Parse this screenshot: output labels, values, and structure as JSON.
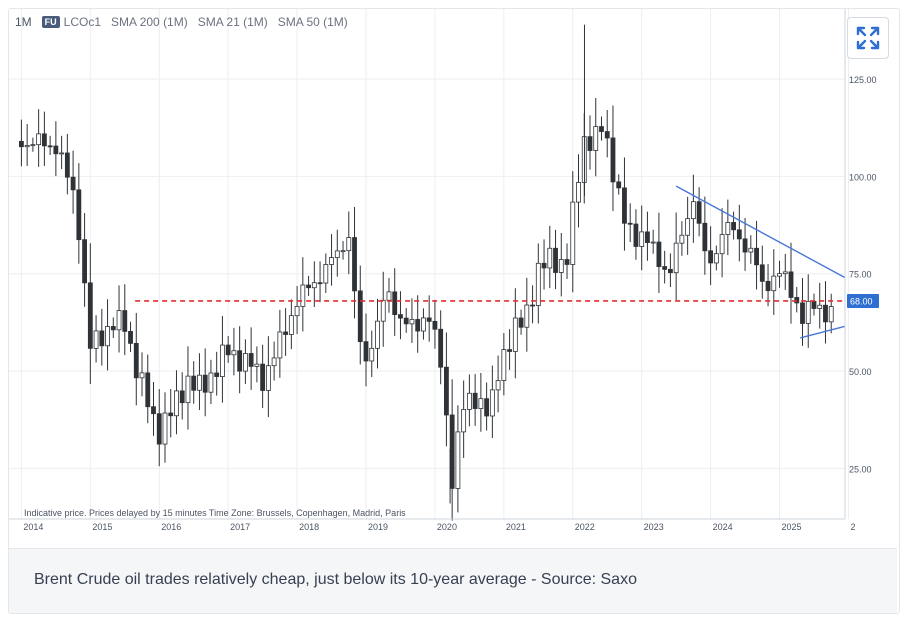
{
  "toolbar": {
    "timeframe": "1M",
    "symbol_badge": "FU",
    "symbol": "LCOc1",
    "indicators": [
      "SMA 200 (1M)",
      "SMA 21 (1M)",
      "SMA 50 (1M)"
    ]
  },
  "caption": "Brent Crude oil trades relatively cheap, just below its 10-year average - Source: Saxo",
  "colors": {
    "candle": "#2f3337",
    "trendline": "#4a78d8",
    "average_line": "#e02f2f",
    "price_tag_bg": "#2f6fd1",
    "grid": "#eceef1"
  },
  "chart_data": {
    "type": "candlestick",
    "y_ticks": [
      "125.00",
      "100.00",
      "75.00",
      "50.00",
      "25.00"
    ],
    "ylim": [
      12,
      143
    ],
    "x_ticks": [
      "2014",
      "2015",
      "2016",
      "2017",
      "2018",
      "2019",
      "2020",
      "2021",
      "2022",
      "2023",
      "2024",
      "2025",
      "2"
    ],
    "xlim": [
      2013.82,
      2025.95
    ],
    "footer_note": "Indicative price. Prices delayed by 15 minutes   Time Zone: Brussels, Copenhagen, Madrid, Paris",
    "average_line": {
      "value": 68,
      "label": "68.00"
    },
    "resistance_trendline": [
      [
        2023.5,
        97.5
      ],
      [
        2025.95,
        74
      ]
    ],
    "support_trendline": [
      [
        2025.3,
        58.5
      ],
      [
        2025.95,
        61.5
      ]
    ],
    "close_series": [
      [
        2014.0,
        109
      ],
      [
        2014.5,
        108
      ],
      [
        2014.8,
        93
      ],
      [
        2015.0,
        56
      ],
      [
        2015.3,
        62
      ],
      [
        2015.5,
        62
      ],
      [
        2015.7,
        49
      ],
      [
        2015.9,
        38
      ],
      [
        2016.0,
        35
      ],
      [
        2016.2,
        40
      ],
      [
        2016.4,
        48
      ],
      [
        2016.6,
        45
      ],
      [
        2016.9,
        53
      ],
      [
        2017.0,
        55
      ],
      [
        2017.3,
        52
      ],
      [
        2017.5,
        48
      ],
      [
        2017.7,
        55
      ],
      [
        2017.9,
        64
      ],
      [
        2018.0,
        68
      ],
      [
        2018.3,
        74
      ],
      [
        2018.5,
        78
      ],
      [
        2018.75,
        85
      ],
      [
        2018.9,
        57
      ],
      [
        2019.0,
        53
      ],
      [
        2019.3,
        70
      ],
      [
        2019.5,
        64
      ],
      [
        2019.7,
        60
      ],
      [
        2019.9,
        66
      ],
      [
        2020.0,
        58
      ],
      [
        2020.1,
        50
      ],
      [
        2020.25,
        23
      ],
      [
        2020.4,
        40
      ],
      [
        2020.6,
        44
      ],
      [
        2020.8,
        38
      ],
      [
        2020.9,
        49
      ],
      [
        2021.0,
        55
      ],
      [
        2021.3,
        64
      ],
      [
        2021.5,
        75
      ],
      [
        2021.7,
        80
      ],
      [
        2021.9,
        76
      ],
      [
        2022.0,
        90
      ],
      [
        2022.15,
        110
      ],
      [
        2022.3,
        108
      ],
      [
        2022.45,
        114
      ],
      [
        2022.6,
        100
      ],
      [
        2022.75,
        88
      ],
      [
        2022.9,
        85
      ],
      [
        2023.0,
        85
      ],
      [
        2023.2,
        80
      ],
      [
        2023.4,
        75
      ],
      [
        2023.6,
        86
      ],
      [
        2023.75,
        95
      ],
      [
        2023.9,
        80
      ],
      [
        2024.0,
        78
      ],
      [
        2024.2,
        87
      ],
      [
        2024.4,
        85
      ],
      [
        2024.6,
        80
      ],
      [
        2024.75,
        72
      ],
      [
        2024.9,
        74
      ],
      [
        2025.0,
        75
      ],
      [
        2025.2,
        70
      ],
      [
        2025.35,
        63
      ],
      [
        2025.5,
        67
      ],
      [
        2025.65,
        66
      ],
      [
        2025.8,
        63
      ]
    ]
  }
}
